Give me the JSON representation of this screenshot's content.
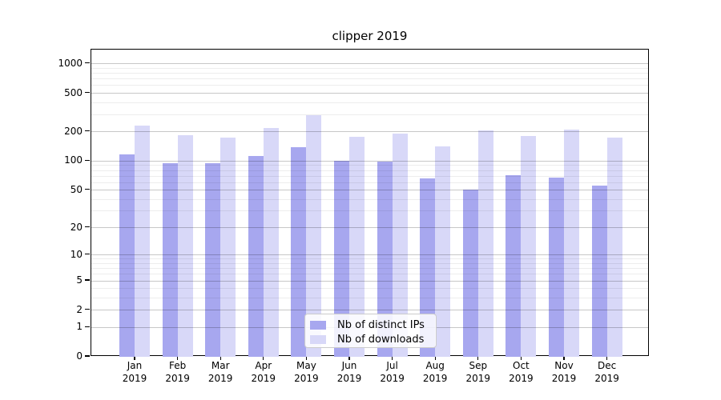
{
  "chart_data": {
    "type": "bar",
    "title": "clipper 2019",
    "categories": [
      "Jan",
      "Feb",
      "Mar",
      "Apr",
      "May",
      "Jun",
      "Jul",
      "Aug",
      "Sep",
      "Oct",
      "Nov",
      "Dec"
    ],
    "year": "2019",
    "series": [
      {
        "name": "Nb of distinct IPs",
        "color": "#a7a7ef",
        "values": [
          117,
          96,
          96,
          114,
          138,
          100,
          98,
          66,
          51,
          72,
          68,
          56
        ]
      },
      {
        "name": "Nb of downloads",
        "color": "#d8d8f8",
        "values": [
          232,
          184,
          174,
          220,
          300,
          177,
          193,
          141,
          206,
          182,
          211,
          174
        ]
      }
    ],
    "y_scale": "log1p",
    "y_ticks": [
      0,
      1,
      2,
      5,
      10,
      20,
      50,
      100,
      200,
      500,
      1000
    ],
    "y_minor_gridlines": [
      3,
      4,
      6,
      7,
      8,
      9,
      30,
      40,
      60,
      70,
      80,
      90,
      300,
      400,
      600,
      700,
      800,
      900
    ],
    "ylim": [
      0,
      1400
    ],
    "grid": true,
    "legend_position": "lower center"
  }
}
